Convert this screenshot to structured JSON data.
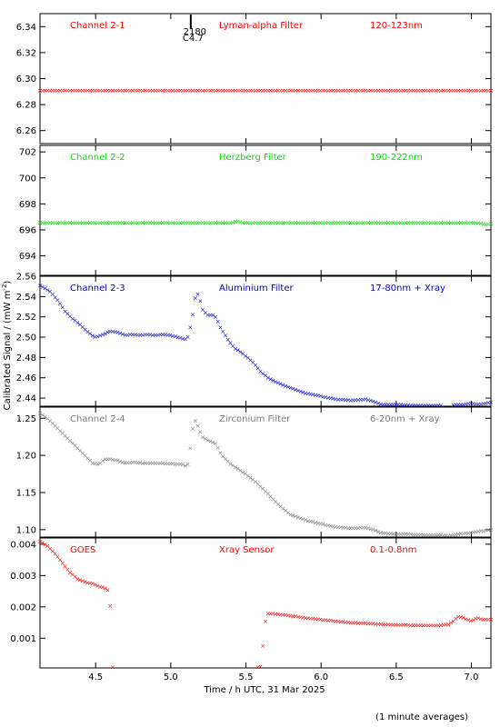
{
  "chart_data": {
    "type": "scatter",
    "xlabel": "Time / h UTC, 31 Mar 2025",
    "ylabel": "Calibrated Signal / (mW m",
    "ylabel_sup": "-2",
    "ylabel_end": ")",
    "xlim": [
      4.13,
      7.13
    ],
    "x_ticks": [
      4.5,
      5.0,
      5.5,
      6.0,
      6.5,
      7.0
    ],
    "x_tick_labels": [
      "4.5",
      "5.0",
      "5.5",
      "6.0",
      "6.5",
      "7.0"
    ],
    "footnote": "(1 minute averages)",
    "marker_text": {
      "top": "2180",
      "bottom": "C4.7",
      "x": 5.13
    },
    "panels": [
      {
        "channel": "Channel 2-1",
        "filter": "Lyman-alpha Filter",
        "band": "120-123nm",
        "color": "#ff0000",
        "ylim": [
          6.25,
          6.35
        ],
        "y_ticks": [
          6.26,
          6.28,
          6.3,
          6.32,
          6.34
        ],
        "y_tick_labels": [
          "6.26",
          "6.28",
          "6.30",
          "6.32",
          "6.34"
        ],
        "series": [
          [
            4.13,
            6.291
          ],
          [
            7.13,
            6.291
          ]
        ]
      },
      {
        "channel": "Channel 2-2",
        "filter": "Herzberg Filter",
        "band": "190-222nm",
        "color": "#00e000",
        "ylim": [
          692.5,
          702.5
        ],
        "y_ticks": [
          694,
          696,
          698,
          700,
          702
        ],
        "y_tick_labels": [
          "694",
          "696",
          "698",
          "700",
          "702"
        ],
        "series": [
          [
            4.13,
            696.55
          ],
          [
            5.4,
            696.55
          ],
          [
            5.44,
            696.7
          ],
          [
            5.48,
            696.55
          ],
          [
            7.05,
            696.55
          ],
          [
            7.1,
            696.4
          ],
          [
            7.13,
            696.5
          ]
        ]
      },
      {
        "channel": "Channel 2-3",
        "filter": "Aluminium Filter",
        "band": "17-80nm + Xray",
        "color": "#0000cc",
        "ylim": [
          2.432,
          2.56
        ],
        "y_ticks": [
          2.44,
          2.46,
          2.48,
          2.5,
          2.52,
          2.54,
          2.56
        ],
        "y_tick_labels": [
          "2.44",
          "2.46",
          "2.48",
          "2.50",
          "2.52",
          "2.54",
          "2.56"
        ],
        "series": [
          [
            4.13,
            2.551
          ],
          [
            4.2,
            2.545
          ],
          [
            4.25,
            2.536
          ],
          [
            4.3,
            2.525
          ],
          [
            4.35,
            2.518
          ],
          [
            4.4,
            2.512
          ],
          [
            4.45,
            2.505
          ],
          [
            4.5,
            2.5
          ],
          [
            4.55,
            2.503
          ],
          [
            4.6,
            2.506
          ],
          [
            4.65,
            2.505
          ],
          [
            4.7,
            2.502
          ],
          [
            4.75,
            2.503
          ],
          [
            4.8,
            2.502
          ],
          [
            4.85,
            2.503
          ],
          [
            4.9,
            2.502
          ],
          [
            4.95,
            2.503
          ],
          [
            5.0,
            2.502
          ],
          [
            5.05,
            2.5
          ],
          [
            5.1,
            2.498
          ],
          [
            5.12,
            2.502
          ],
          [
            5.15,
            2.525
          ],
          [
            5.17,
            2.545
          ],
          [
            5.19,
            2.54
          ],
          [
            5.21,
            2.528
          ],
          [
            5.24,
            2.522
          ],
          [
            5.28,
            2.522
          ],
          [
            5.3,
            2.52
          ],
          [
            5.33,
            2.51
          ],
          [
            5.37,
            2.5
          ],
          [
            5.42,
            2.49
          ],
          [
            5.48,
            2.484
          ],
          [
            5.55,
            2.475
          ],
          [
            5.6,
            2.466
          ],
          [
            5.65,
            2.46
          ],
          [
            5.7,
            2.456
          ],
          [
            5.8,
            2.45
          ],
          [
            5.9,
            2.445
          ],
          [
            6.0,
            2.442
          ],
          [
            6.1,
            2.439
          ],
          [
            6.2,
            2.438
          ],
          [
            6.3,
            2.439
          ],
          [
            6.35,
            2.437
          ],
          [
            6.4,
            2.434
          ],
          [
            6.5,
            2.434
          ],
          [
            6.6,
            2.433
          ],
          [
            6.7,
            2.433
          ],
          [
            6.8,
            2.433
          ],
          [
            6.85,
            2.432
          ],
          [
            6.9,
            2.434
          ],
          [
            6.95,
            2.434
          ],
          [
            7.0,
            2.435
          ],
          [
            7.05,
            2.434
          ],
          [
            7.13,
            2.436
          ]
        ]
      },
      {
        "channel": "Channel 2-4",
        "filter": "Zirconium Filter",
        "band": "6-20nm + Xray",
        "color": "#7a7a7a",
        "ylim": [
          1.09,
          1.265
        ],
        "y_ticks": [
          1.1,
          1.15,
          1.2,
          1.25
        ],
        "y_tick_labels": [
          "1.10",
          "1.15",
          "1.20",
          "1.25"
        ],
        "series": [
          [
            4.13,
            1.257
          ],
          [
            4.18,
            1.25
          ],
          [
            4.23,
            1.24
          ],
          [
            4.28,
            1.23
          ],
          [
            4.33,
            1.22
          ],
          [
            4.38,
            1.21
          ],
          [
            4.43,
            1.2
          ],
          [
            4.48,
            1.19
          ],
          [
            4.52,
            1.188
          ],
          [
            4.56,
            1.195
          ],
          [
            4.6,
            1.195
          ],
          [
            4.65,
            1.193
          ],
          [
            4.7,
            1.19
          ],
          [
            4.75,
            1.191
          ],
          [
            4.8,
            1.19
          ],
          [
            4.9,
            1.19
          ],
          [
            5.0,
            1.189
          ],
          [
            5.08,
            1.188
          ],
          [
            5.1,
            1.186
          ],
          [
            5.12,
            1.19
          ],
          [
            5.14,
            1.23
          ],
          [
            5.16,
            1.248
          ],
          [
            5.18,
            1.24
          ],
          [
            5.21,
            1.225
          ],
          [
            5.25,
            1.22
          ],
          [
            5.3,
            1.216
          ],
          [
            5.34,
            1.2
          ],
          [
            5.4,
            1.188
          ],
          [
            5.45,
            1.182
          ],
          [
            5.5,
            1.175
          ],
          [
            5.55,
            1.167
          ],
          [
            5.6,
            1.158
          ],
          [
            5.65,
            1.148
          ],
          [
            5.7,
            1.137
          ],
          [
            5.75,
            1.128
          ],
          [
            5.8,
            1.12
          ],
          [
            5.9,
            1.113
          ],
          [
            6.0,
            1.108
          ],
          [
            6.1,
            1.104
          ],
          [
            6.2,
            1.102
          ],
          [
            6.3,
            1.103
          ],
          [
            6.35,
            1.1
          ],
          [
            6.4,
            1.096
          ],
          [
            6.5,
            1.094
          ],
          [
            6.6,
            1.094
          ],
          [
            6.7,
            1.093
          ],
          [
            6.8,
            1.093
          ],
          [
            6.85,
            1.092
          ],
          [
            6.9,
            1.094
          ],
          [
            6.95,
            1.095
          ],
          [
            7.0,
            1.096
          ],
          [
            7.05,
            1.098
          ],
          [
            7.13,
            1.1
          ]
        ]
      },
      {
        "channel": "GOES",
        "filter": "Xray Sensor",
        "band": "0.1-0.8nm",
        "color": "#ff0000",
        "ylim": [
          5e-05,
          0.0042
        ],
        "y_ticks": [
          0.001,
          0.002,
          0.003,
          0.004
        ],
        "y_tick_labels": [
          "0.001",
          "0.002",
          "0.003",
          "0.004"
        ],
        "series": [
          [
            4.13,
            0.0041
          ],
          [
            4.18,
            0.00395
          ],
          [
            4.23,
            0.0037
          ],
          [
            4.28,
            0.0034
          ],
          [
            4.33,
            0.0031
          ],
          [
            4.38,
            0.0029
          ],
          [
            4.43,
            0.0028
          ],
          [
            4.48,
            0.00275
          ],
          [
            4.53,
            0.00265
          ],
          [
            4.57,
            0.0026
          ],
          [
            4.58,
            0.00255
          ],
          [
            4.59,
            0.0023
          ],
          [
            4.6,
            0.0019
          ],
          [
            4.61,
            8e-05
          ],
          [
            4.7,
            6e-05
          ],
          [
            4.8,
            6e-05
          ],
          [
            4.9,
            6e-05
          ],
          [
            5.0,
            6e-05
          ],
          [
            5.1,
            6e-05
          ],
          [
            5.2,
            6e-05
          ],
          [
            5.3,
            6e-05
          ],
          [
            5.4,
            6e-05
          ],
          [
            5.5,
            6e-05
          ],
          [
            5.57,
            7e-05
          ],
          [
            5.6,
            0.0001
          ],
          [
            5.61,
            0.0005
          ],
          [
            5.62,
            0.0013
          ],
          [
            5.64,
            0.0018
          ],
          [
            5.7,
            0.00178
          ],
          [
            5.8,
            0.00172
          ],
          [
            5.9,
            0.00165
          ],
          [
            6.0,
            0.0016
          ],
          [
            6.1,
            0.00155
          ],
          [
            6.2,
            0.0015
          ],
          [
            6.3,
            0.00148
          ],
          [
            6.4,
            0.00145
          ],
          [
            6.5,
            0.00143
          ],
          [
            6.6,
            0.00142
          ],
          [
            6.7,
            0.00142
          ],
          [
            6.8,
            0.00142
          ],
          [
            6.85,
            0.00145
          ],
          [
            6.88,
            0.00155
          ],
          [
            6.91,
            0.0017
          ],
          [
            6.95,
            0.00165
          ],
          [
            7.0,
            0.00155
          ],
          [
            7.04,
            0.00165
          ],
          [
            7.08,
            0.0016
          ],
          [
            7.13,
            0.0016
          ]
        ]
      }
    ]
  }
}
